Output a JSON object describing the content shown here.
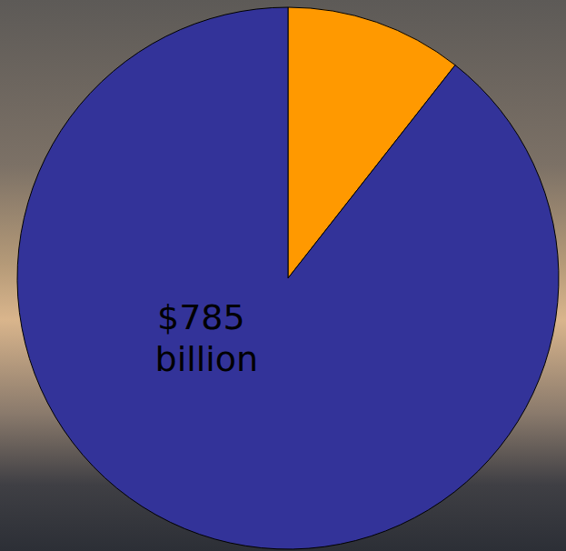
{
  "chart_data": {
    "type": "pie",
    "categories": [
      null,
      null
    ],
    "values": [
      93,
      785
    ],
    "value_labels": [
      null,
      "$785 billion"
    ],
    "colors": [
      "#ff9900",
      "#333399"
    ],
    "data_labels": true
  }
}
